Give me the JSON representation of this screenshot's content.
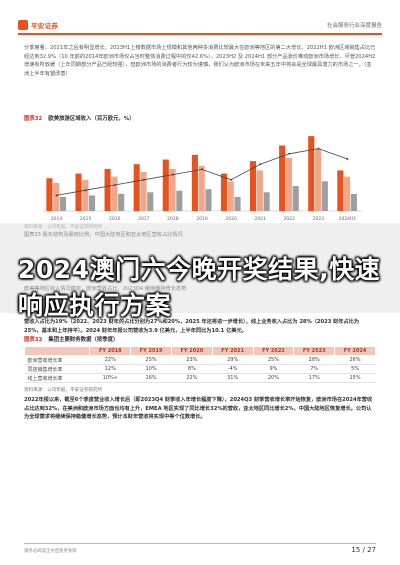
{
  "header": {
    "logo_text": "平安证券",
    "right_text": "社会服务行业深度报告"
  },
  "intro": {
    "paragraph": "分季度看，2021年之后有明显增长，2023H1上榜数据市场上规模和其他两种多消费比较最大在欧洲等地区的第二大增长，2022H1 欧洲区域销售占比已经达到32.9%（10 年前的2014年欧洲市场仅占当时整体消费过程中的仅42.6%），2023H2 及 2024H1 部分产品涨价推动欧洲市场增长，尽管2024H2 增速有所放缓（上年同期部分产品已经较强），但欧洲市场的消费者行为较为谨慎，我们认为欧洲市场在未来五年中将会是全球最具潜力的市场之一。（亚洲上半年有望改善）"
  },
  "figure32": {
    "number": "图表32",
    "title": "欧美旅游区域收入（百万欧元，%）",
    "source": "资料来源：公司年报，平安证券研究所"
  },
  "chart_data": {
    "type": "bar",
    "title": "",
    "categories": [
      "2014",
      "2015",
      "2016",
      "2017",
      "2018",
      "2019",
      "2020",
      "2021",
      "2022",
      "2023",
      "2024H1"
    ],
    "series": [
      {
        "name": "",
        "values": [
          210,
          240,
          270,
          300,
          330,
          360,
          240,
          320,
          420,
          480,
          260
        ]
      },
      {
        "name": "",
        "values": [
          180,
          200,
          220,
          250,
          270,
          290,
          190,
          260,
          340,
          400,
          220
        ]
      },
      {
        "name": "",
        "values": [
          90,
          100,
          110,
          120,
          130,
          140,
          90,
          120,
          160,
          190,
          110
        ]
      }
    ],
    "line": [
      33,
      34,
      35,
      36,
      37,
      38,
      36,
      39,
      41,
      42,
      40
    ],
    "colors": [
      "#e8521f",
      "#f2a68a",
      "#9e9e9e"
    ],
    "line_color": "#444444"
  },
  "overlay": {
    "ghost_lines": [
      "图表33 股东结构及股权比例，中国大陆地区和亚太地区营收占比情况",
      "欧美等地区收入情况稳定，欧洲营收占比，2023Q4 继续维持增长态势",
      "同比公司主要数据如下表所示，市场目前处于稳定增长阶段"
    ]
  },
  "headline": "2024澳门六今晚开奖结果,快速响应执行方案",
  "summary": {
    "paragraph": "营收入占比为19%（2022、2023 财年的占比分别为27%和20%，2025 年还将进一步增长），线上业务收入占比为 28%（2023 财年占比为25%，基本和上年持平）。2024 财年年报公司营收为3.9 亿美元，上半年同比为10.1 亿美元。"
  },
  "table": {
    "number": "图表33",
    "title": "集团主要财务数据（按季度）",
    "headers": [
      "",
      "FY 2018",
      "FY 2019",
      "FY 2020",
      "FY 2021",
      "FY 2022",
      "FY 2023",
      "FY 2024"
    ],
    "rows": [
      [
        "欧洲营收增长率",
        "22%",
        "25%",
        "23%",
        "29%",
        "25%",
        "28%",
        "26%"
      ],
      [
        "同店销售增长率",
        "12%",
        "10%",
        "8%",
        "-4%",
        "9%",
        "7%",
        "5%"
      ],
      [
        "线上营收增长率",
        "10%+",
        "16%",
        "22%",
        "31%",
        "20%",
        "17%",
        "15%"
      ]
    ],
    "source": "资料来源：公司年报，平安证券研究所"
  },
  "outro": {
    "paragraph": "2022年报以来，截至6个季度营业收入增长后（即2023Q4 财季收入年增长幅度下降），2024Q3 财季营收增长率开始恢复，欧洲市场在2024年营收占比达到32%，在美洲和欧洲市场方面也均有上升，EMEA 地区实现了同比增长32%的营收，亚太地区同比增长2%，中国大陆地区恢复增长。公司认为全球需求将继续保持稳健增长态势，预计本财年营收将实现中等个位数增长。"
  },
  "footer": {
    "disclaimer": "请务必阅读正文后免责条款",
    "page": "15 / 27"
  }
}
